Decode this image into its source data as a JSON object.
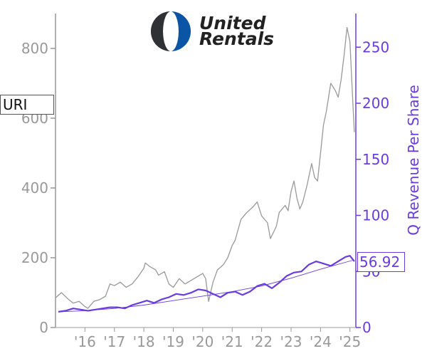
{
  "logo": {
    "line1": "United",
    "line2": "Rentals"
  },
  "ticker": "URI",
  "last_value": "56.92",
  "colors": {
    "price": "#999999",
    "revenue": "#6a3be0",
    "trend": "#6a3be0"
  },
  "chart_data": {
    "type": "line",
    "title": "",
    "xlabel": "",
    "ylabel_left": "",
    "ylabel_right": "Q Revenue Per Share",
    "x_tick_labels": [
      "'16",
      "'17",
      "'18",
      "'19",
      "'20",
      "'21",
      "'22",
      "'23",
      "'24",
      "'25"
    ],
    "x_tick_years": [
      2016,
      2017,
      2018,
      2019,
      2020,
      2021,
      2022,
      2023,
      2024,
      2025
    ],
    "xlim": [
      2015.0,
      2025.2
    ],
    "y_left_ticks": [
      0,
      200,
      400,
      600,
      800
    ],
    "y_left_lim": [
      0,
      900
    ],
    "y_right_ticks": [
      0,
      50,
      100,
      150,
      200,
      250
    ],
    "y_right_lim": [
      0,
      280
    ],
    "grid": false,
    "series": [
      {
        "name": "",
        "axis": "left",
        "style": "price",
        "x": [
          2015.0,
          2015.2,
          2015.45,
          2015.6,
          2015.8,
          2016.0,
          2016.1,
          2016.3,
          2016.5,
          2016.7,
          2016.85,
          2017.0,
          2017.2,
          2017.4,
          2017.6,
          2017.8,
          2018.0,
          2018.05,
          2018.2,
          2018.4,
          2018.5,
          2018.7,
          2018.85,
          2019.0,
          2019.2,
          2019.4,
          2019.6,
          2019.8,
          2020.0,
          2020.1,
          2020.2,
          2020.35,
          2020.5,
          2020.7,
          2020.85,
          2021.0,
          2021.1,
          2021.3,
          2021.5,
          2021.7,
          2021.85,
          2022.0,
          2022.2,
          2022.3,
          2022.5,
          2022.6,
          2022.8,
          2022.9,
          2023.0,
          2023.1,
          2023.2,
          2023.3,
          2023.4,
          2023.55,
          2023.7,
          2023.8,
          2023.9,
          2024.0,
          2024.1,
          2024.2,
          2024.35,
          2024.5,
          2024.6,
          2024.7,
          2024.8,
          2024.9,
          2025.0,
          2025.1,
          2025.15
        ],
        "y": [
          85,
          100,
          80,
          70,
          75,
          60,
          55,
          75,
          80,
          90,
          125,
          120,
          130,
          115,
          125,
          145,
          170,
          185,
          175,
          165,
          150,
          160,
          125,
          115,
          140,
          125,
          135,
          145,
          155,
          140,
          75,
          130,
          165,
          180,
          200,
          235,
          250,
          310,
          330,
          345,
          360,
          320,
          300,
          255,
          290,
          330,
          350,
          335,
          390,
          420,
          370,
          340,
          360,
          410,
          470,
          430,
          420,
          500,
          580,
          620,
          700,
          680,
          660,
          710,
          780,
          860,
          820,
          640,
          560
        ]
      },
      {
        "name": "",
        "axis": "right",
        "style": "revenue",
        "x": [
          2015.1,
          2015.35,
          2015.6,
          2015.85,
          2016.1,
          2016.35,
          2016.6,
          2016.85,
          2017.1,
          2017.35,
          2017.6,
          2017.85,
          2018.1,
          2018.35,
          2018.6,
          2018.85,
          2019.1,
          2019.35,
          2019.6,
          2019.85,
          2020.1,
          2020.35,
          2020.6,
          2020.85,
          2021.1,
          2021.35,
          2021.6,
          2021.85,
          2022.1,
          2022.35,
          2022.6,
          2022.85,
          2023.1,
          2023.35,
          2023.6,
          2023.85,
          2024.1,
          2024.35,
          2024.6,
          2024.85,
          2025.0,
          2025.15
        ],
        "y": [
          14,
          15,
          17,
          16,
          15,
          16,
          17,
          18,
          18,
          17,
          20,
          22,
          24,
          22,
          25,
          27,
          30,
          29,
          31,
          34,
          33,
          30,
          27,
          31,
          32,
          29,
          32,
          37,
          39,
          35,
          40,
          46,
          49,
          50,
          56,
          59,
          57,
          55,
          59,
          63,
          64,
          59
        ]
      },
      {
        "name": "",
        "axis": "right",
        "style": "trend",
        "x": [
          2015.1,
          2016.0,
          2017.0,
          2018.0,
          2019.0,
          2020.0,
          2021.0,
          2022.0,
          2023.0,
          2024.0,
          2025.1
        ],
        "y": [
          14,
          15,
          17,
          20,
          24,
          28,
          32,
          37,
          44,
          52,
          60
        ]
      }
    ]
  }
}
